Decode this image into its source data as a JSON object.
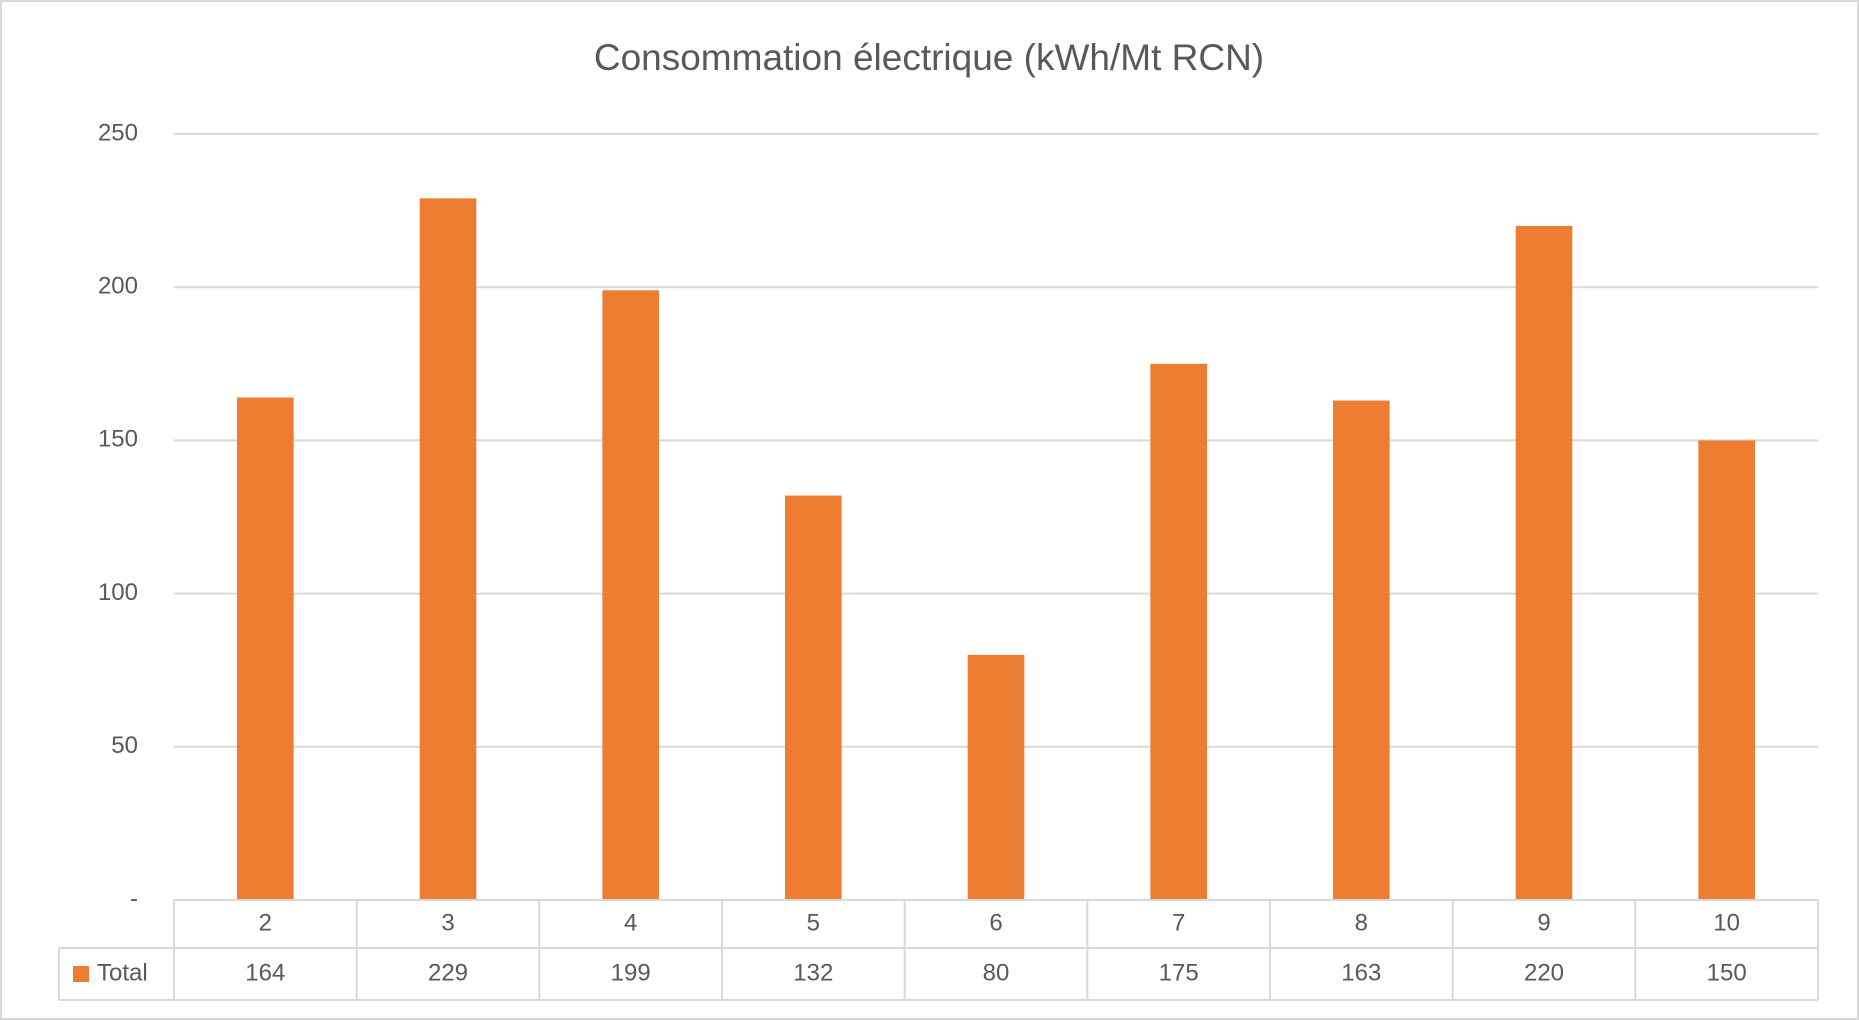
{
  "chart_data": {
    "type": "bar",
    "title": "Consommation électrique (kWh/Mt RCN)",
    "categories": [
      "2",
      "3",
      "4",
      "5",
      "6",
      "7",
      "8",
      "9",
      "10"
    ],
    "series": [
      {
        "name": "Total",
        "color": "#ed7d31",
        "values": [
          164,
          229,
          199,
          132,
          80,
          175,
          163,
          220,
          150
        ]
      }
    ],
    "ylim": [
      0,
      250
    ],
    "yticks": [
      {
        "value": 0,
        "label": "-"
      },
      50,
      100,
      150,
      200,
      250
    ],
    "grid": true,
    "data_table": true
  }
}
